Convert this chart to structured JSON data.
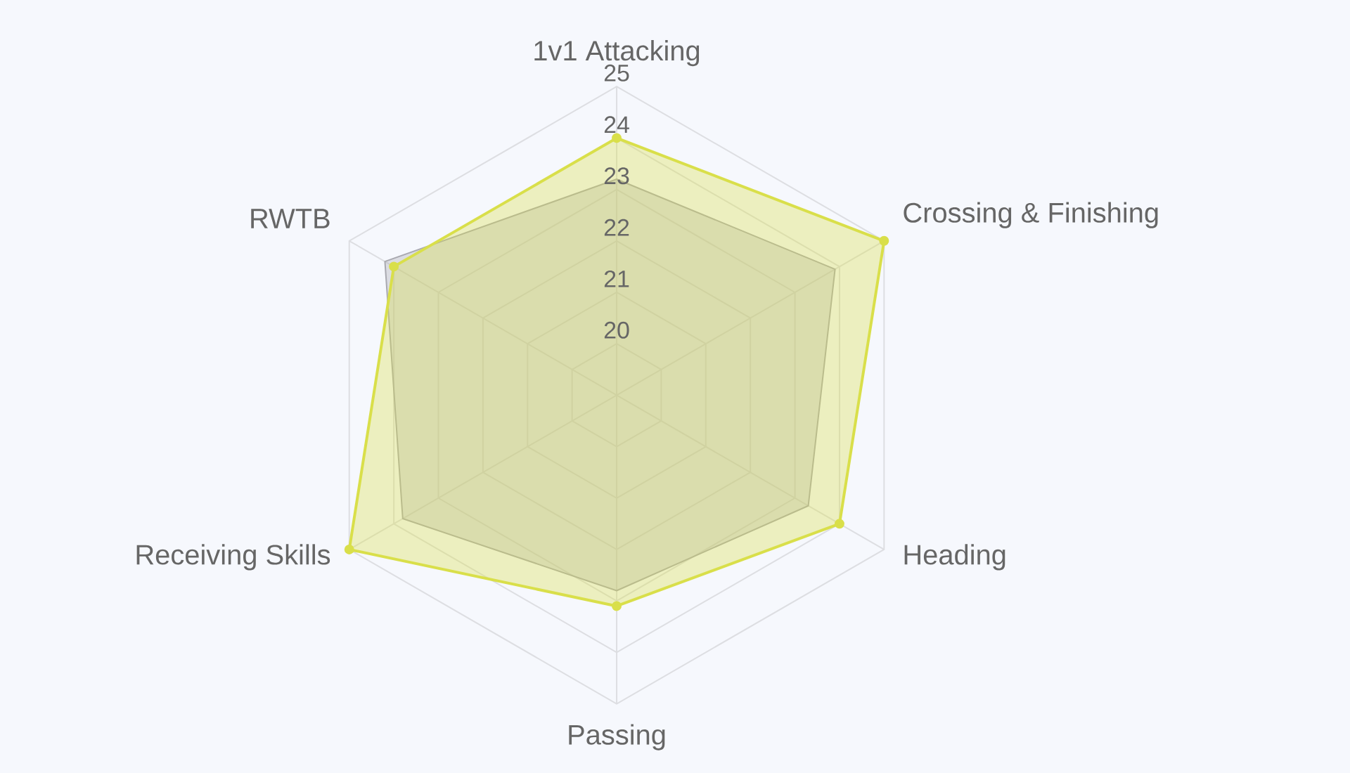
{
  "chart_data": {
    "type": "radar",
    "categories": [
      "1v1 Attacking",
      "Crossing & Finishing",
      "Heading",
      "Passing",
      "Receiving Skills",
      "RWTB"
    ],
    "series": [
      {
        "color": "#a9a9b0",
        "marker": "none",
        "values": [
          23.2,
          23.9,
          23.3,
          22.8,
          23.8,
          24.2
        ]
      },
      {
        "color": "#d9df4a",
        "marker": "circle",
        "values": [
          24,
          25,
          24,
          23.1,
          25,
          24
        ]
      }
    ],
    "ylim": [
      19,
      25
    ],
    "yticks": [
      20,
      21,
      22,
      23,
      24,
      25
    ],
    "grid": true
  }
}
